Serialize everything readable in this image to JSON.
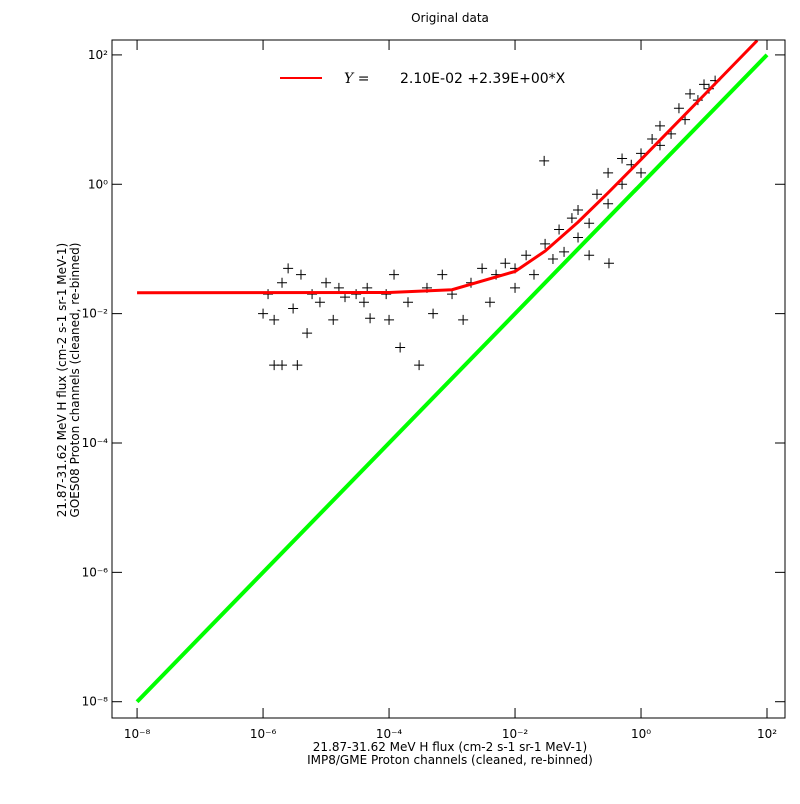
{
  "chart_data": {
    "type": "scatter",
    "title": "Original data",
    "xlabel": [
      "21.87-31.62 MeV H flux (cm-2 s-1 sr-1 MeV-1)",
      "IMP8/GME Proton channels (cleaned, re-binned)"
    ],
    "ylabel": [
      "21.87-31.62 MeV H flux (cm-2 s-1 sr-1 MeV-1)",
      "GOES08 Proton channels (cleaned, re-binned)"
    ],
    "xscale": "log",
    "yscale": "log",
    "xlim": [
      4e-09,
      193
    ],
    "ylim": [
      5.6e-09,
      170
    ],
    "xticks": [
      {
        "value": 1e-08,
        "label": "10⁻⁸"
      },
      {
        "value": 1e-06,
        "label": "10⁻⁶"
      },
      {
        "value": 0.0001,
        "label": "10⁻⁴"
      },
      {
        "value": 0.01,
        "label": "10⁻²"
      },
      {
        "value": 1,
        "label": "10⁰"
      },
      {
        "value": 100,
        "label": "10²"
      }
    ],
    "yticks": [
      {
        "value": 1e-08,
        "label": "10⁻⁸"
      },
      {
        "value": 1e-06,
        "label": "10⁻⁶"
      },
      {
        "value": 0.0001,
        "label": "10⁻⁴"
      },
      {
        "value": 0.01,
        "label": "10⁻²"
      },
      {
        "value": 1,
        "label": "10⁰"
      },
      {
        "value": 100,
        "label": "10²"
      }
    ],
    "legend": {
      "symbol": "Y =",
      "equation": "2.10E-02 +2.39E+00*X"
    },
    "scatter": {
      "color": "#000000",
      "x": [
        1.2e-06,
        1.5e-06,
        2e-06,
        3e-06,
        4e-06,
        5e-06,
        6e-06,
        8e-06,
        1e-05,
        1.3e-05,
        1.6e-05,
        2e-05,
        1.5e-06,
        2e-06,
        3.5e-06,
        2.5e-06,
        1e-06,
        3e-05,
        4e-05,
        5e-05,
        4.5e-05,
        9e-05,
        0.0001,
        0.00012,
        0.00015,
        0.0002,
        0.0003,
        0.0004,
        0.0005,
        0.0007,
        0.001,
        0.0015,
        0.002,
        0.003,
        0.004,
        0.005,
        0.007,
        0.01,
        0.01,
        0.015,
        0.02,
        0.03,
        0.04,
        0.05,
        0.06,
        0.08,
        0.1,
        0.1,
        0.15,
        0.2,
        0.3,
        0.3,
        0.5,
        0.5,
        0.7,
        1,
        1,
        1.5,
        2,
        2,
        3,
        4,
        5,
        6,
        8,
        10,
        12,
        15,
        0.029,
        0.31,
        0.15
      ],
      "y": [
        0.02,
        0.008,
        0.03,
        0.012,
        0.04,
        0.005,
        0.02,
        0.015,
        0.03,
        0.008,
        0.025,
        0.018,
        0.0016,
        0.0016,
        0.0016,
        0.05,
        0.01,
        0.02,
        0.015,
        0.0085,
        0.025,
        0.02,
        0.008,
        0.04,
        0.003,
        0.015,
        0.0016,
        0.025,
        0.01,
        0.04,
        0.02,
        0.008,
        0.03,
        0.05,
        0.015,
        0.04,
        0.06,
        0.05,
        0.025,
        0.08,
        0.04,
        0.12,
        0.07,
        0.2,
        0.09,
        0.3,
        0.15,
        0.4,
        0.25,
        0.7,
        0.5,
        1.5,
        1,
        2.5,
        2,
        3,
        1.5,
        5,
        4,
        8,
        6,
        15,
        10,
        25,
        20,
        35,
        30,
        40,
        2.3,
        0.06,
        0.08
      ]
    },
    "fit": {
      "color": "#ff0000",
      "x": [
        1e-08,
        0.0001,
        0.001,
        0.01,
        0.03,
        0.1,
        0.3,
        1,
        3,
        10,
        30,
        70
      ],
      "y": [
        0.021,
        0.0212,
        0.0234,
        0.0449,
        0.0927,
        0.26,
        0.738,
        2.41,
        7.19,
        23.9,
        71.7,
        167.3
      ]
    },
    "identity": {
      "color": "#00ff00",
      "x": [
        1e-08,
        100
      ],
      "y": [
        1e-08,
        100
      ]
    }
  }
}
